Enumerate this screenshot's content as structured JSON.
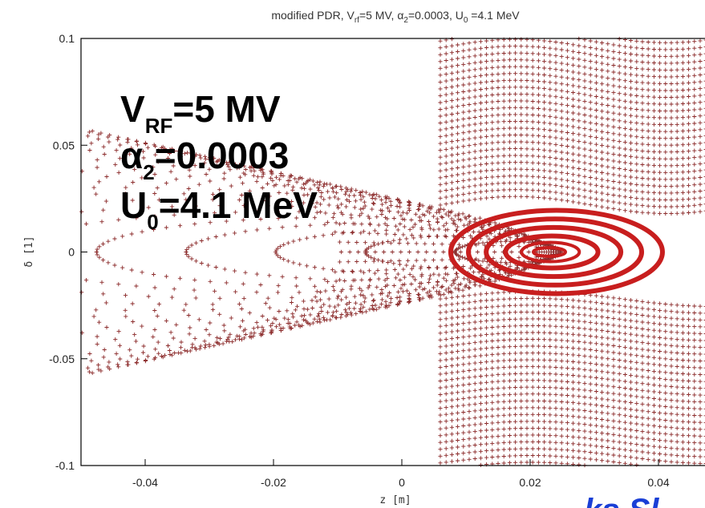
{
  "chart_data": {
    "type": "scatter",
    "title": {
      "prefix": "modified PDR, V",
      "v_sub": "rf",
      "v_rest": "=5 MV, ",
      "alpha": "α",
      "alpha_sub": "2",
      "alpha_rest": "=0.0003, U",
      "u_sub": "0",
      "u_rest": " =4.1 MeV"
    },
    "xlabel": "z  [m]",
    "ylabel": "δ  [1]",
    "xlim": [
      -0.05,
      0.05
    ],
    "ylim": [
      -0.1,
      0.1
    ],
    "x_ticks": [
      "-0.04",
      "-0.02",
      "0",
      "0.02",
      "0.04"
    ],
    "y_ticks": [
      "0.1",
      "0.05",
      "0",
      "-0.05",
      "-0.1"
    ],
    "marker": "+",
    "colors": {
      "particles": "#8b2a2a",
      "core": "#c81e1e",
      "annotation": "#000000",
      "corner": "#1a3fd6"
    },
    "fixed_point": {
      "z": 0.0228,
      "delta": 0.0
    },
    "core_orbits_half_width_z": [
      0.0025,
      0.0045,
      0.0072,
      0.0105,
      0.0135,
      0.0165
    ],
    "core_orbits_half_height_delta": [
      0.002,
      0.0045,
      0.0075,
      0.0115,
      0.0155,
      0.0195
    ],
    "annotation": {
      "line1_main": "V",
      "line1_sub": "RF",
      "line1_rest": "=5 MV",
      "line2_main": "α",
      "line2_sub": "2",
      "line2_rest": "=0.0003",
      "line3_main": "U",
      "line3_sub": "0",
      "line3_rest": "=4.1 MeV"
    },
    "corner_text": "ks Sl"
  }
}
